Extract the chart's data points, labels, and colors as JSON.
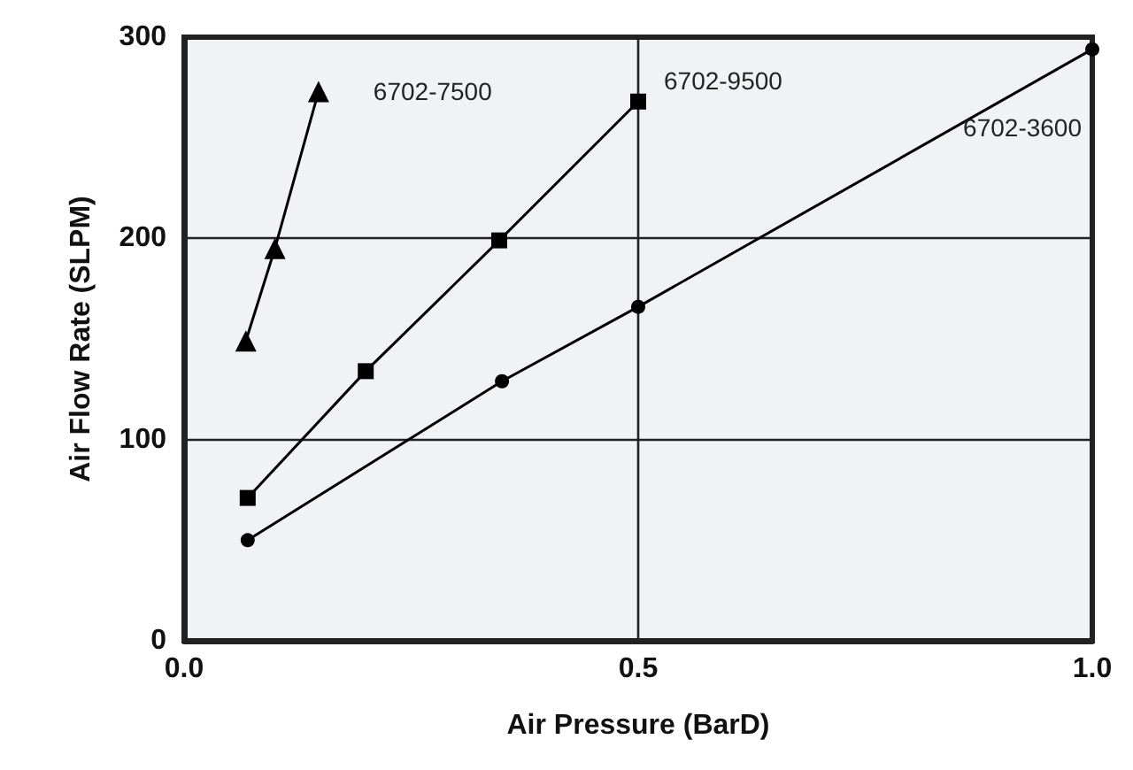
{
  "chart_data": {
    "type": "line",
    "xlabel": "Air Pressure (BarD)",
    "ylabel": "Air Flow Rate (SLPM)",
    "xlim": [
      0,
      1
    ],
    "xticks": [
      {
        "value": 0,
        "label": "0.0"
      },
      0.5,
      {
        "value": 1,
        "label": "1.0"
      }
    ],
    "ylim": [
      0,
      300
    ],
    "yticks": [
      0,
      100,
      200,
      300
    ],
    "grid": true,
    "legend": false,
    "line_style": "solid",
    "series": [
      {
        "name": "6702-7500",
        "color": "#000000",
        "marker": "triangle",
        "x": [
          0.068,
          0.1,
          0.148
        ],
        "values": [
          149,
          195,
          273
        ]
      },
      {
        "name": "6702-9500",
        "color": "#000000",
        "marker": "square",
        "x": [
          0.07,
          0.2,
          0.347,
          0.5
        ],
        "values": [
          71,
          134,
          199,
          268
        ]
      },
      {
        "name": "6702-3600",
        "color": "#000000",
        "marker": "circle",
        "x": [
          0.07,
          0.35,
          0.5,
          1.0
        ],
        "values": [
          50,
          129,
          166,
          294
        ]
      }
    ]
  }
}
